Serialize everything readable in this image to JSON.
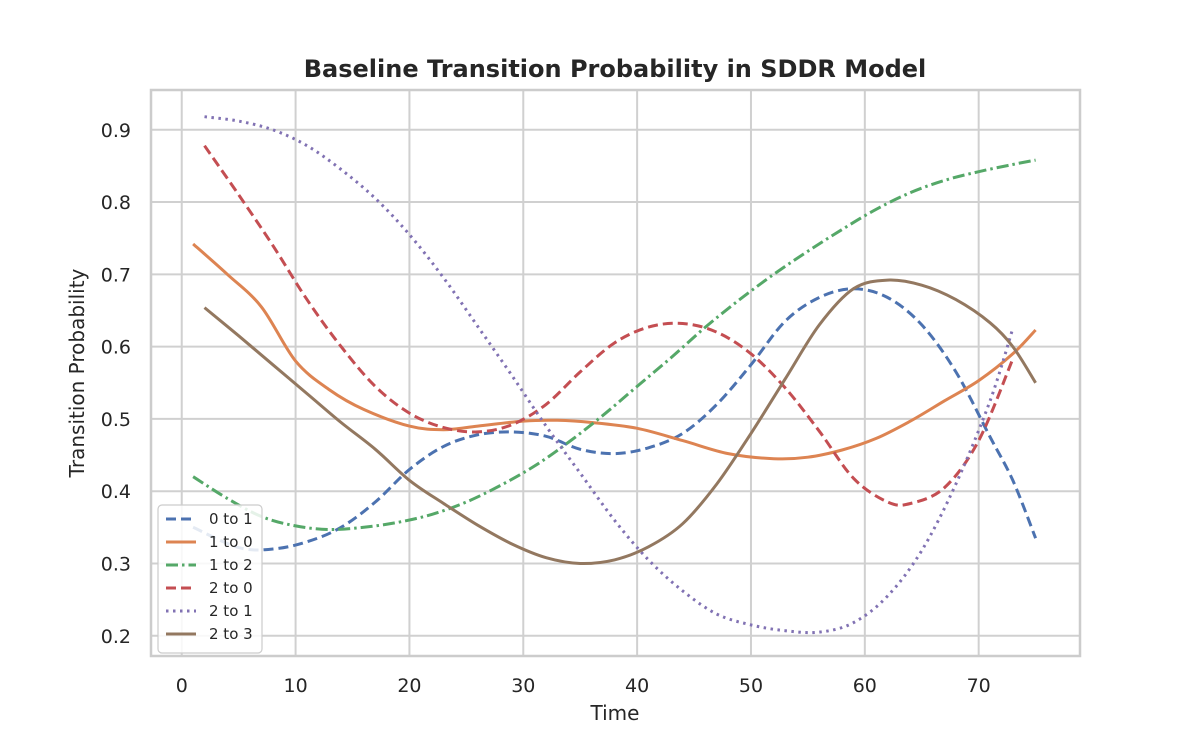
{
  "chart_data": {
    "type": "line",
    "title": "Baseline Transition Probability in SDDR Model",
    "xlabel": "Time",
    "ylabel": "Transition Probability",
    "xlim": [
      -2.7,
      78.9
    ],
    "ylim": [
      0.172,
      0.955
    ],
    "xticks": [
      0,
      10,
      20,
      30,
      40,
      50,
      60,
      70
    ],
    "yticks": [
      0.2,
      0.3,
      0.4,
      0.5,
      0.6,
      0.7,
      0.8,
      0.9
    ],
    "grid": true,
    "legend_position": "lower-left",
    "series": [
      {
        "name": "0 to 1",
        "color": "#4c72b0",
        "style": "dashed",
        "points": [
          [
            1,
            0.35
          ],
          [
            5,
            0.322
          ],
          [
            8,
            0.32
          ],
          [
            11,
            0.33
          ],
          [
            14,
            0.35
          ],
          [
            17,
            0.385
          ],
          [
            20,
            0.43
          ],
          [
            23,
            0.462
          ],
          [
            26,
            0.478
          ],
          [
            29,
            0.482
          ],
          [
            32,
            0.476
          ],
          [
            35,
            0.458
          ],
          [
            38,
            0.452
          ],
          [
            41,
            0.46
          ],
          [
            44,
            0.48
          ],
          [
            47,
            0.52
          ],
          [
            50,
            0.575
          ],
          [
            53,
            0.635
          ],
          [
            56,
            0.668
          ],
          [
            59,
            0.68
          ],
          [
            62,
            0.668
          ],
          [
            65,
            0.63
          ],
          [
            68,
            0.565
          ],
          [
            71,
            0.475
          ],
          [
            73,
            0.415
          ],
          [
            75,
            0.335
          ]
        ]
      },
      {
        "name": "1 to 0",
        "color": "#dd8452",
        "style": "solid",
        "points": [
          [
            1,
            0.742
          ],
          [
            4,
            0.7
          ],
          [
            7,
            0.655
          ],
          [
            10,
            0.58
          ],
          [
            13,
            0.54
          ],
          [
            16,
            0.513
          ],
          [
            20,
            0.49
          ],
          [
            23,
            0.485
          ],
          [
            26,
            0.49
          ],
          [
            30,
            0.497
          ],
          [
            33,
            0.498
          ],
          [
            36,
            0.495
          ],
          [
            40,
            0.487
          ],
          [
            44,
            0.47
          ],
          [
            48,
            0.452
          ],
          [
            52,
            0.445
          ],
          [
            55,
            0.447
          ],
          [
            58,
            0.457
          ],
          [
            61,
            0.473
          ],
          [
            64,
            0.497
          ],
          [
            67,
            0.525
          ],
          [
            70,
            0.553
          ],
          [
            73,
            0.59
          ],
          [
            75,
            0.623
          ]
        ]
      },
      {
        "name": "1 to 2",
        "color": "#55a868",
        "style": "dashdot",
        "points": [
          [
            1,
            0.42
          ],
          [
            4,
            0.39
          ],
          [
            7,
            0.365
          ],
          [
            10,
            0.352
          ],
          [
            13,
            0.347
          ],
          [
            16,
            0.35
          ],
          [
            19,
            0.357
          ],
          [
            22,
            0.368
          ],
          [
            25,
            0.385
          ],
          [
            28,
            0.408
          ],
          [
            31,
            0.435
          ],
          [
            34,
            0.468
          ],
          [
            37,
            0.505
          ],
          [
            40,
            0.545
          ],
          [
            43,
            0.585
          ],
          [
            46,
            0.627
          ],
          [
            49,
            0.665
          ],
          [
            52,
            0.7
          ],
          [
            55,
            0.732
          ],
          [
            58,
            0.762
          ],
          [
            61,
            0.79
          ],
          [
            64,
            0.813
          ],
          [
            67,
            0.83
          ],
          [
            70,
            0.842
          ],
          [
            73,
            0.852
          ],
          [
            75,
            0.858
          ]
        ]
      },
      {
        "name": "2 to 0",
        "color": "#c44e52",
        "style": "dashed",
        "points": [
          [
            2,
            0.878
          ],
          [
            5,
            0.81
          ],
          [
            8,
            0.74
          ],
          [
            11,
            0.665
          ],
          [
            14,
            0.6
          ],
          [
            17,
            0.545
          ],
          [
            20,
            0.508
          ],
          [
            23,
            0.488
          ],
          [
            26,
            0.482
          ],
          [
            29,
            0.492
          ],
          [
            32,
            0.52
          ],
          [
            35,
            0.565
          ],
          [
            38,
            0.605
          ],
          [
            41,
            0.627
          ],
          [
            44,
            0.632
          ],
          [
            47,
            0.62
          ],
          [
            50,
            0.59
          ],
          [
            53,
            0.543
          ],
          [
            56,
            0.483
          ],
          [
            59,
            0.418
          ],
          [
            62,
            0.385
          ],
          [
            64,
            0.383
          ],
          [
            67,
            0.405
          ],
          [
            70,
            0.47
          ],
          [
            73,
            0.583
          ]
        ]
      },
      {
        "name": "2 to 1",
        "color": "#8172b3",
        "style": "dotted",
        "points": [
          [
            2,
            0.918
          ],
          [
            5,
            0.912
          ],
          [
            8,
            0.9
          ],
          [
            11,
            0.878
          ],
          [
            14,
            0.845
          ],
          [
            17,
            0.805
          ],
          [
            20,
            0.755
          ],
          [
            23,
            0.695
          ],
          [
            26,
            0.628
          ],
          [
            29,
            0.56
          ],
          [
            32,
            0.49
          ],
          [
            35,
            0.425
          ],
          [
            38,
            0.36
          ],
          [
            41,
            0.305
          ],
          [
            44,
            0.262
          ],
          [
            47,
            0.23
          ],
          [
            50,
            0.215
          ],
          [
            53,
            0.207
          ],
          [
            56,
            0.205
          ],
          [
            59,
            0.218
          ],
          [
            62,
            0.255
          ],
          [
            65,
            0.318
          ],
          [
            68,
            0.41
          ],
          [
            71,
            0.525
          ],
          [
            73,
            0.625
          ]
        ]
      },
      {
        "name": "2 to 3",
        "color": "#937860",
        "style": "solid",
        "points": [
          [
            2,
            0.654
          ],
          [
            5,
            0.615
          ],
          [
            8,
            0.575
          ],
          [
            11,
            0.535
          ],
          [
            14,
            0.495
          ],
          [
            17,
            0.458
          ],
          [
            20,
            0.415
          ],
          [
            23,
            0.383
          ],
          [
            26,
            0.353
          ],
          [
            29,
            0.327
          ],
          [
            32,
            0.308
          ],
          [
            35,
            0.3
          ],
          [
            38,
            0.305
          ],
          [
            41,
            0.323
          ],
          [
            44,
            0.355
          ],
          [
            47,
            0.41
          ],
          [
            50,
            0.48
          ],
          [
            53,
            0.555
          ],
          [
            56,
            0.63
          ],
          [
            59,
            0.68
          ],
          [
            62,
            0.692
          ],
          [
            65,
            0.685
          ],
          [
            68,
            0.665
          ],
          [
            71,
            0.633
          ],
          [
            73,
            0.6
          ],
          [
            75,
            0.55
          ]
        ]
      }
    ]
  }
}
